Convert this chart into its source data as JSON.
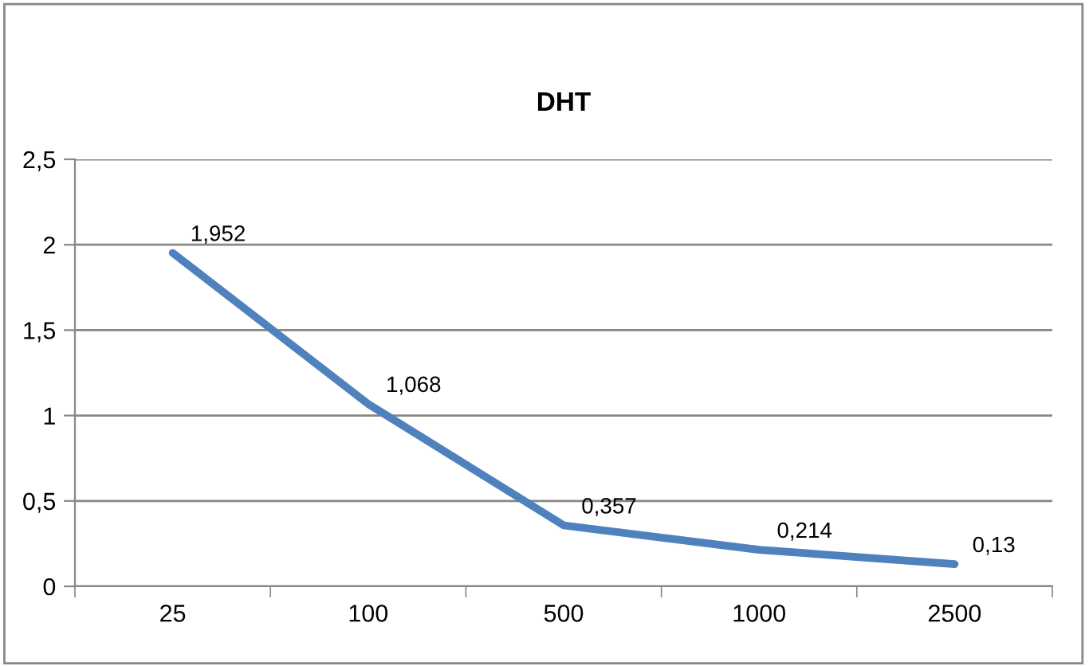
{
  "chart_data": {
    "type": "line",
    "title": "DHT",
    "categories": [
      "25",
      "100",
      "500",
      "1000",
      "2500"
    ],
    "series": [
      {
        "color": "#4f81bd",
        "values": [
          1.952,
          1.068,
          0.357,
          0.214,
          0.13
        ],
        "value_labels": [
          "1,952",
          "1,068",
          "0,357",
          "0,214",
          "0,13"
        ]
      }
    ],
    "ylim": [
      0,
      2.5
    ],
    "yticks": [
      0,
      {
        "value": 0.5,
        "label": "0,5"
      },
      1,
      {
        "value": 1.5,
        "label": "1,5"
      },
      2,
      {
        "value": 2.5,
        "label": "2,5"
      }
    ],
    "grid": "y",
    "legend": false,
    "marker": "none",
    "line_style": "solid"
  }
}
